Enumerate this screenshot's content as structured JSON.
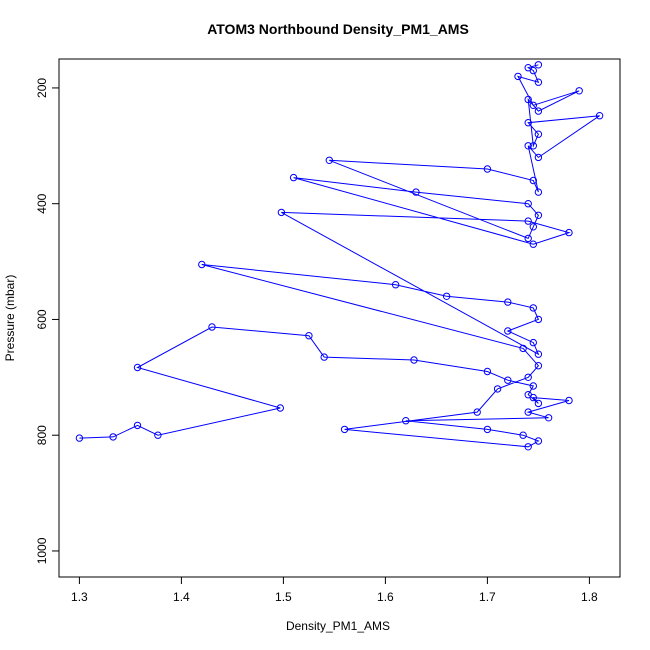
{
  "chart_data": {
    "type": "line",
    "title": "ATOM3 Northbound Density_PM1_AMS",
    "xlabel": "Density_PM1_AMS",
    "ylabel": "Pressure (mbar)",
    "xlim": [
      1.28,
      1.83
    ],
    "ylim": [
      1045,
      150
    ],
    "y_reversed": true,
    "x_ticks": [
      1.3,
      1.4,
      1.5,
      1.6,
      1.7,
      1.8
    ],
    "x_tick_labels": [
      "1.3",
      "1.4",
      "1.5",
      "1.6",
      "1.7",
      "1.8"
    ],
    "y_ticks": [
      200,
      400,
      600,
      800,
      1000
    ],
    "y_tick_labels": [
      "200",
      "400",
      "600",
      "800",
      "1000"
    ],
    "grid": false,
    "legend": "none",
    "series_color": "#0000ff",
    "marker": "open-circle",
    "series": [
      {
        "x": [
          1.3,
          1.333,
          1.357,
          1.377,
          1.497,
          1.357,
          1.43,
          1.525,
          1.54,
          1.628,
          1.7,
          1.72,
          1.745,
          1.74,
          1.75,
          1.745,
          1.78,
          1.74,
          1.76,
          1.62,
          1.7,
          1.735,
          1.75,
          1.74,
          1.56,
          1.69,
          1.71,
          1.74,
          1.75,
          1.735,
          1.42,
          1.61,
          1.66,
          1.72,
          1.745,
          1.75,
          1.72,
          1.745,
          1.75,
          1.498,
          1.74,
          1.78,
          1.745,
          1.51,
          1.63,
          1.74,
          1.75,
          1.745,
          1.74,
          1.545,
          1.7,
          1.745,
          1.75,
          1.74,
          1.75,
          1.81,
          1.74,
          1.75,
          1.745,
          1.74,
          1.75,
          1.79,
          1.745,
          1.73,
          1.75,
          1.745,
          1.74,
          1.75
        ],
        "y": [
          805,
          803,
          783,
          800,
          753,
          683,
          613,
          628,
          665,
          670,
          690,
          705,
          715,
          730,
          745,
          735,
          740,
          760,
          770,
          775,
          790,
          800,
          810,
          820,
          790,
          760,
          720,
          700,
          680,
          650,
          505,
          540,
          560,
          570,
          580,
          600,
          620,
          640,
          660,
          415,
          430,
          450,
          470,
          355,
          380,
          400,
          420,
          440,
          460,
          325,
          340,
          360,
          380,
          300,
          320,
          248,
          260,
          280,
          300,
          220,
          240,
          205,
          230,
          180,
          190,
          170,
          165,
          160
        ]
      }
    ]
  }
}
